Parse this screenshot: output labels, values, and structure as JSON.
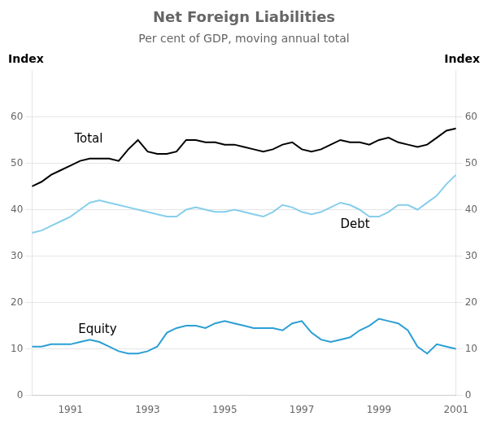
{
  "chart_data": {
    "type": "line",
    "title": "Net Foreign Liabilities",
    "subtitle": "Per cent of GDP, moving annual total",
    "ylabel": "Index",
    "y2label": "Index",
    "x": [
      1990.0,
      1990.25,
      1990.5,
      1990.75,
      1991.0,
      1991.25,
      1991.5,
      1991.75,
      1992.0,
      1992.25,
      1992.5,
      1992.75,
      1993.0,
      1993.25,
      1993.5,
      1993.75,
      1994.0,
      1994.25,
      1994.5,
      1994.75,
      1995.0,
      1995.25,
      1995.5,
      1995.75,
      1996.0,
      1996.25,
      1996.5,
      1996.75,
      1997.0,
      1997.25,
      1997.5,
      1997.75,
      1998.0,
      1998.25,
      1998.5,
      1998.75,
      1999.0,
      1999.25,
      1999.5,
      1999.75,
      2000.0,
      2000.25,
      2000.5,
      2000.75,
      2001.0
    ],
    "series": [
      {
        "color": "#000000",
        "values": [
          45.0,
          46.0,
          47.5,
          48.5,
          49.5,
          50.5,
          51.0,
          51.0,
          51.0,
          50.5,
          53.0,
          55.0,
          52.5,
          52.0,
          52.0,
          52.5,
          55.0,
          55.0,
          54.5,
          54.5,
          54.0,
          54.0,
          53.5,
          53.0,
          52.5,
          53.0,
          54.0,
          54.5,
          53.0,
          52.5,
          53.0,
          54.0,
          55.0,
          54.5,
          54.5,
          54.0,
          55.0,
          55.5,
          54.5,
          54.0,
          53.5,
          54.0,
          55.5,
          57.0,
          57.5
        ]
      },
      {
        "color": "#87CEEB",
        "values": [
          35.0,
          35.5,
          36.5,
          37.5,
          38.5,
          40.0,
          41.5,
          42.0,
          41.5,
          41.0,
          40.5,
          40.0,
          39.5,
          39.0,
          38.5,
          38.5,
          40.0,
          40.5,
          40.0,
          39.5,
          39.5,
          40.0,
          39.5,
          39.0,
          38.5,
          39.5,
          41.0,
          40.5,
          39.5,
          39.0,
          39.5,
          40.5,
          41.5,
          41.0,
          40.0,
          38.5,
          38.5,
          39.5,
          41.0,
          41.0,
          40.0,
          41.5,
          43.0,
          45.5,
          47.5
        ]
      },
      {
        "color": "#2B9FD4",
        "values": [
          10.5,
          10.5,
          11.0,
          11.0,
          11.0,
          11.5,
          12.0,
          11.5,
          10.5,
          9.5,
          9.0,
          9.0,
          9.5,
          10.5,
          13.5,
          14.5,
          15.0,
          15.0,
          14.5,
          15.5,
          16.0,
          15.5,
          15.0,
          14.5,
          14.5,
          14.5,
          14.0,
          15.5,
          16.0,
          13.5,
          12.0,
          11.5,
          12.0,
          12.5,
          14.0,
          15.0,
          16.5,
          16.0,
          15.5,
          14.0,
          10.5,
          9.0,
          11.0,
          10.5,
          10.0
        ]
      }
    ],
    "xlim": [
      1990.0,
      2001.0
    ],
    "xticks": [
      1991,
      1993,
      1995,
      1997,
      1999,
      2001
    ],
    "ylim": [
      0,
      70
    ],
    "yticks": [
      0,
      10,
      20,
      30,
      40,
      50,
      60
    ],
    "y2lim": [
      0,
      70
    ],
    "y2ticks": [
      0,
      10,
      20,
      30,
      40,
      50,
      60
    ],
    "grid": "y",
    "annotations": [
      {
        "text": "Total",
        "x": 1991.1,
        "y": 54.5,
        "color": "#000000"
      },
      {
        "text": "Debt",
        "x": 1998.0,
        "y": 36.0,
        "color": "#000000"
      },
      {
        "text": "Equity",
        "x": 1991.2,
        "y": 13.5,
        "color": "#000000"
      }
    ]
  }
}
